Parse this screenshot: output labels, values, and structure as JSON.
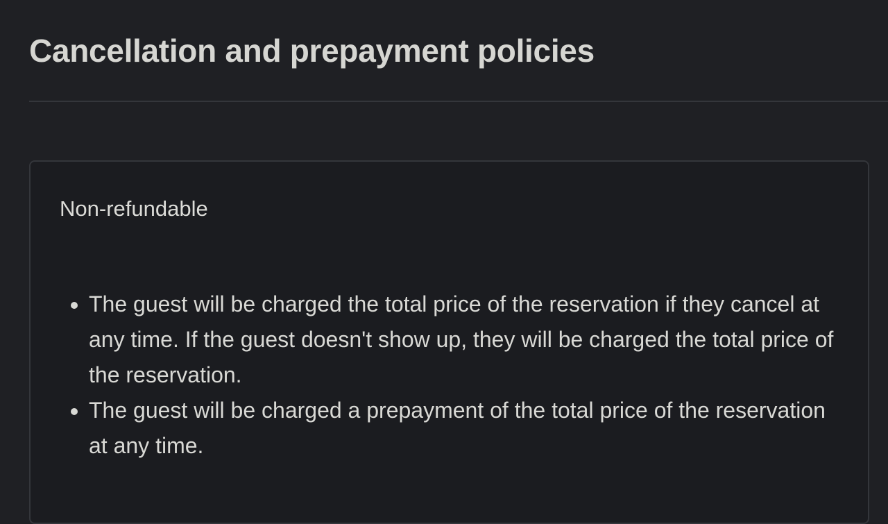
{
  "header": {
    "title": "Cancellation and prepayment policies"
  },
  "policy": {
    "name": "Non-refundable",
    "items": [
      "The guest will be charged the total price of the reservation if they cancel at any time. If the guest doesn't show up, they will be charged the total price of the reservation.",
      "The guest will be charged a prepayment of the total price of the reservation at any time."
    ]
  }
}
